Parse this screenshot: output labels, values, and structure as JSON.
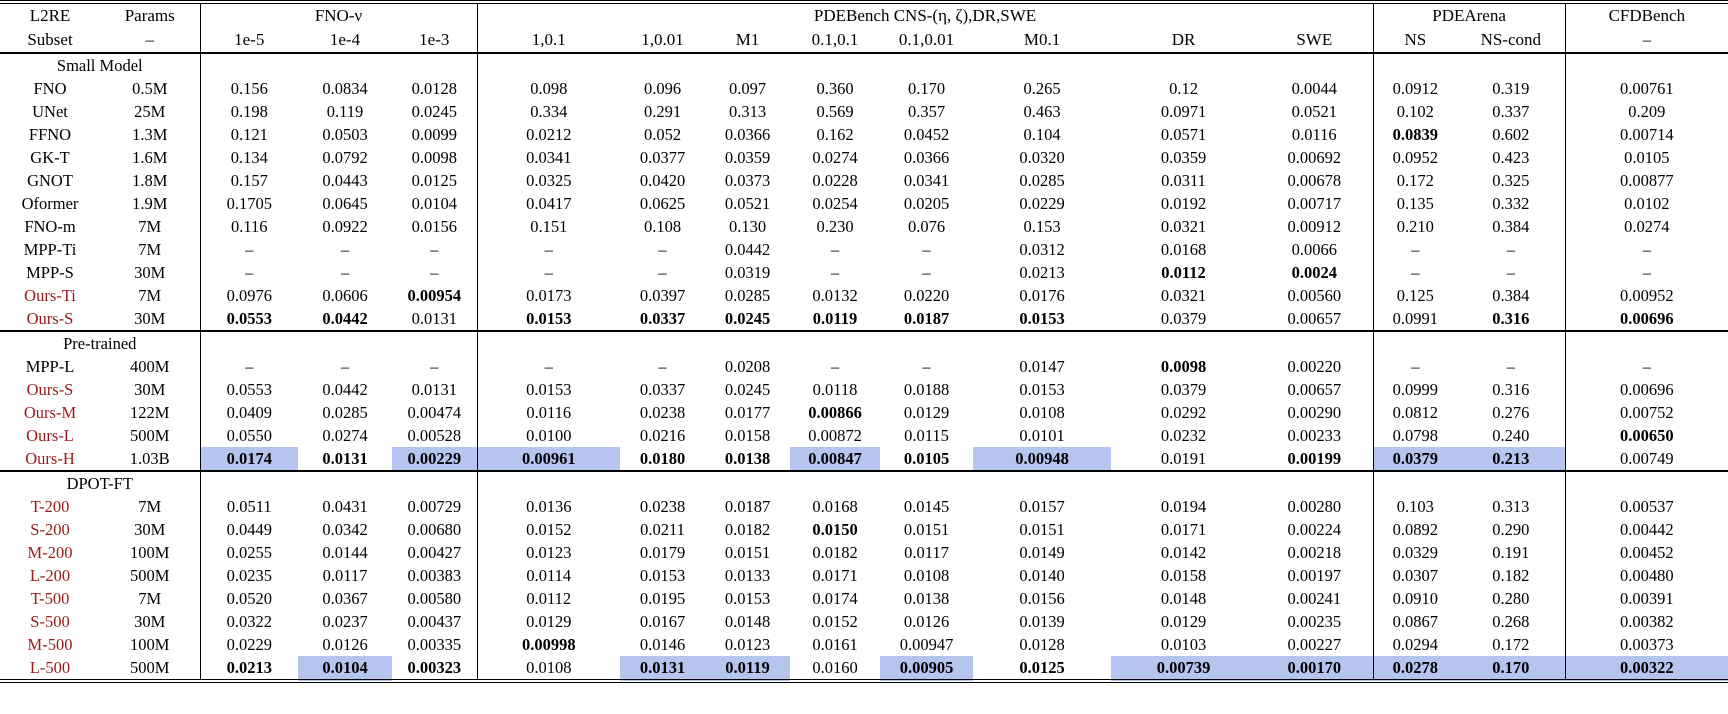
{
  "colors": {
    "highlight": "#b6c5f0",
    "model_red": "#9a1a1a",
    "text": "#000000"
  },
  "table": {
    "header": {
      "groups": [
        {
          "label": "L2RE",
          "span": 1
        },
        {
          "label": "Params",
          "span": 1
        },
        {
          "label": "FNO-ν",
          "span": 3
        },
        {
          "label": "PDEBench CNS-(η, ζ),DR,SWE",
          "span": 8
        },
        {
          "label": "PDEArena",
          "span": 2
        },
        {
          "label": "CFDBench",
          "span": 1
        }
      ],
      "columns": [
        "Subset",
        "–",
        "1e-5",
        "1e-4",
        "1e-3",
        "1,0.1",
        "1,0.01",
        "M1",
        "0.1,0.1",
        "0.1,0.01",
        "M0.1",
        "DR",
        "SWE",
        "NS",
        "NS-cond",
        "–"
      ]
    },
    "sections": [
      {
        "title": "Small Model",
        "rows": [
          {
            "model": "FNO",
            "params": "0.5M",
            "red": false,
            "cells": [
              "0.156",
              "0.0834",
              "0.0128",
              "0.098",
              "0.096",
              "0.097",
              "0.360",
              "0.170",
              "0.265",
              "0.12",
              "0.0044",
              "0.0912",
              "0.319",
              "0.00761"
            ]
          },
          {
            "model": "UNet",
            "params": "25M",
            "red": false,
            "cells": [
              "0.198",
              "0.119",
              "0.0245",
              "0.334",
              "0.291",
              "0.313",
              "0.569",
              "0.357",
              "0.463",
              "0.0971",
              "0.0521",
              "0.102",
              "0.337",
              "0.209"
            ]
          },
          {
            "model": "FFNO",
            "params": "1.3M",
            "red": false,
            "cells": [
              "0.121",
              "0.0503",
              "0.0099",
              "0.0212",
              "0.052",
              "0.0366",
              "0.162",
              "0.0452",
              "0.104",
              "0.0571",
              "0.0116",
              {
                "v": "0.0839",
                "b": true
              },
              "0.602",
              "0.00714"
            ]
          },
          {
            "model": "GK-T",
            "params": "1.6M",
            "red": false,
            "cells": [
              "0.134",
              "0.0792",
              "0.0098",
              "0.0341",
              "0.0377",
              "0.0359",
              "0.0274",
              "0.0366",
              "0.0320",
              "0.0359",
              "0.00692",
              "0.0952",
              "0.423",
              "0.0105"
            ]
          },
          {
            "model": "GNOT",
            "params": "1.8M",
            "red": false,
            "cells": [
              "0.157",
              "0.0443",
              "0.0125",
              "0.0325",
              "0.0420",
              "0.0373",
              "0.0228",
              "0.0341",
              "0.0285",
              "0.0311",
              "0.00678",
              "0.172",
              "0.325",
              "0.00877"
            ]
          },
          {
            "model": "Oformer",
            "params": "1.9M",
            "red": false,
            "cells": [
              "0.1705",
              "0.0645",
              "0.0104",
              "0.0417",
              "0.0625",
              "0.0521",
              "0.0254",
              "0.0205",
              "0.0229",
              "0.0192",
              "0.00717",
              "0.135",
              "0.332",
              "0.0102"
            ]
          },
          {
            "model": "FNO-m",
            "params": "7M",
            "red": false,
            "cells": [
              "0.116",
              "0.0922",
              "0.0156",
              "0.151",
              "0.108",
              "0.130",
              "0.230",
              "0.076",
              "0.153",
              "0.0321",
              "0.00912",
              "0.210",
              "0.384",
              "0.0274"
            ]
          },
          {
            "model": "MPP-Ti",
            "params": "7M",
            "red": false,
            "cells": [
              "–",
              "–",
              "–",
              "–",
              "–",
              "0.0442",
              "–",
              "–",
              "0.0312",
              "0.0168",
              "0.0066",
              "–",
              "–",
              "–"
            ]
          },
          {
            "model": "MPP-S",
            "params": "30M",
            "red": false,
            "cells": [
              "–",
              "–",
              "–",
              "–",
              "–",
              "0.0319",
              "–",
              "–",
              "0.0213",
              {
                "v": "0.0112",
                "b": true
              },
              {
                "v": "0.0024",
                "b": true
              },
              "–",
              "–",
              "–"
            ]
          },
          {
            "model": "Ours-Ti",
            "params": "7M",
            "red": true,
            "cells": [
              "0.0976",
              "0.0606",
              {
                "v": "0.00954",
                "b": true
              },
              "0.0173",
              "0.0397",
              "0.0285",
              "0.0132",
              "0.0220",
              "0.0176",
              "0.0321",
              "0.00560",
              "0.125",
              "0.384",
              "0.00952"
            ]
          },
          {
            "model": "Ours-S",
            "params": "30M",
            "red": true,
            "cells": [
              {
                "v": "0.0553",
                "b": true
              },
              {
                "v": "0.0442",
                "b": true
              },
              "0.0131",
              {
                "v": "0.0153",
                "b": true
              },
              {
                "v": "0.0337",
                "b": true
              },
              {
                "v": "0.0245",
                "b": true
              },
              {
                "v": "0.0119",
                "b": true
              },
              {
                "v": "0.0187",
                "b": true
              },
              {
                "v": "0.0153",
                "b": true
              },
              "0.0379",
              "0.00657",
              "0.0991",
              {
                "v": "0.316",
                "b": true
              },
              {
                "v": "0.00696",
                "b": true
              }
            ]
          }
        ]
      },
      {
        "title": "Pre-trained",
        "rows": [
          {
            "model": "MPP-L",
            "params": "400M",
            "red": false,
            "cells": [
              "–",
              "–",
              "–",
              "–",
              "–",
              "0.0208",
              "–",
              "–",
              "0.0147",
              {
                "v": "0.0098",
                "b": true
              },
              "0.00220",
              "–",
              "–",
              "–"
            ]
          },
          {
            "model": "Ours-S",
            "params": "30M",
            "red": true,
            "cells": [
              "0.0553",
              "0.0442",
              "0.0131",
              "0.0153",
              "0.0337",
              "0.0245",
              "0.0118",
              "0.0188",
              "0.0153",
              "0.0379",
              "0.00657",
              "0.0999",
              "0.316",
              "0.00696"
            ]
          },
          {
            "model": "Ours-M",
            "params": "122M",
            "red": true,
            "cells": [
              "0.0409",
              "0.0285",
              "0.00474",
              "0.0116",
              "0.0238",
              "0.0177",
              {
                "v": "0.00866",
                "b": true
              },
              "0.0129",
              "0.0108",
              "0.0292",
              "0.00290",
              "0.0812",
              "0.276",
              "0.00752"
            ]
          },
          {
            "model": "Ours-L",
            "params": "500M",
            "red": true,
            "cells": [
              "0.0550",
              "0.0274",
              "0.00528",
              "0.0100",
              "0.0216",
              "0.0158",
              "0.00872",
              "0.0115",
              "0.0101",
              "0.0232",
              "0.00233",
              "0.0798",
              "0.240",
              {
                "v": "0.00650",
                "b": true
              }
            ]
          },
          {
            "model": "Ours-H",
            "params": "1.03B",
            "red": true,
            "cells": [
              {
                "v": "0.0174",
                "b": true,
                "h": true
              },
              {
                "v": "0.0131",
                "b": true
              },
              {
                "v": "0.00229",
                "b": true,
                "h": true
              },
              {
                "v": "0.00961",
                "b": true,
                "h": true
              },
              {
                "v": "0.0180",
                "b": true
              },
              {
                "v": "0.0138",
                "b": true
              },
              {
                "v": "0.00847",
                "b": true,
                "h": true
              },
              {
                "v": "0.0105",
                "b": true
              },
              {
                "v": "0.00948",
                "b": true,
                "h": true
              },
              "0.0191",
              {
                "v": "0.00199",
                "b": true
              },
              {
                "v": "0.0379",
                "b": true,
                "h": true
              },
              {
                "v": "0.213",
                "b": true,
                "h": true
              },
              "0.00749"
            ]
          }
        ]
      },
      {
        "title": "DPOT-FT",
        "rows": [
          {
            "model": "T-200",
            "params": "7M",
            "red": true,
            "cells": [
              "0.0511",
              "0.0431",
              "0.00729",
              "0.0136",
              "0.0238",
              "0.0187",
              "0.0168",
              "0.0145",
              "0.0157",
              "0.0194",
              "0.00280",
              "0.103",
              "0.313",
              "0.00537"
            ]
          },
          {
            "model": "S-200",
            "params": "30M",
            "red": true,
            "cells": [
              "0.0449",
              "0.0342",
              "0.00680",
              "0.0152",
              "0.0211",
              "0.0182",
              {
                "v": "0.0150",
                "b": true
              },
              "0.0151",
              "0.0151",
              "0.0171",
              "0.00224",
              "0.0892",
              "0.290",
              "0.00442"
            ]
          },
          {
            "model": "M-200",
            "params": "100M",
            "red": true,
            "cells": [
              "0.0255",
              "0.0144",
              "0.00427",
              "0.0123",
              "0.0179",
              "0.0151",
              "0.0182",
              "0.0117",
              "0.0149",
              "0.0142",
              "0.00218",
              "0.0329",
              "0.191",
              "0.00452"
            ]
          },
          {
            "model": "L-200",
            "params": "500M",
            "red": true,
            "cells": [
              "0.0235",
              "0.0117",
              "0.00383",
              "0.0114",
              "0.0153",
              "0.0133",
              "0.0171",
              "0.0108",
              "0.0140",
              "0.0158",
              "0.00197",
              "0.0307",
              "0.182",
              "0.00480"
            ]
          },
          {
            "model": "T-500",
            "params": "7M",
            "red": true,
            "cells": [
              "0.0520",
              "0.0367",
              "0.00580",
              "0.0112",
              "0.0195",
              "0.0153",
              "0.0174",
              "0.0138",
              "0.0156",
              "0.0148",
              "0.00241",
              "0.0910",
              "0.280",
              "0.00391"
            ]
          },
          {
            "model": "S-500",
            "params": "30M",
            "red": true,
            "cells": [
              "0.0322",
              "0.0237",
              "0.00437",
              "0.0129",
              "0.0167",
              "0.0148",
              "0.0152",
              "0.0126",
              "0.0139",
              "0.0129",
              "0.00235",
              "0.0867",
              "0.268",
              "0.00382"
            ]
          },
          {
            "model": "M-500",
            "params": "100M",
            "red": true,
            "cells": [
              "0.0229",
              "0.0126",
              "0.00335",
              {
                "v": "0.00998",
                "b": true
              },
              "0.0146",
              "0.0123",
              "0.0161",
              "0.00947",
              "0.0128",
              "0.0103",
              "0.00227",
              "0.0294",
              "0.172",
              "0.00373"
            ]
          },
          {
            "model": "L-500",
            "params": "500M",
            "red": true,
            "cells": [
              {
                "v": "0.0213",
                "b": true
              },
              {
                "v": "0.0104",
                "b": true,
                "h": true
              },
              {
                "v": "0.00323",
                "b": true
              },
              "0.0108",
              {
                "v": "0.0131",
                "b": true,
                "h": true
              },
              {
                "v": "0.0119",
                "b": true,
                "h": true
              },
              "0.0160",
              {
                "v": "0.00905",
                "b": true,
                "h": true
              },
              {
                "v": "0.0125",
                "b": true
              },
              {
                "v": "0.00739",
                "b": true,
                "h": true
              },
              {
                "v": "0.00170",
                "b": true,
                "h": true
              },
              {
                "v": "0.0278",
                "b": true,
                "h": true
              },
              {
                "v": "0.170",
                "b": true,
                "h": true
              },
              {
                "v": "0.00322",
                "b": true,
                "h": true
              }
            ]
          }
        ]
      }
    ]
  }
}
